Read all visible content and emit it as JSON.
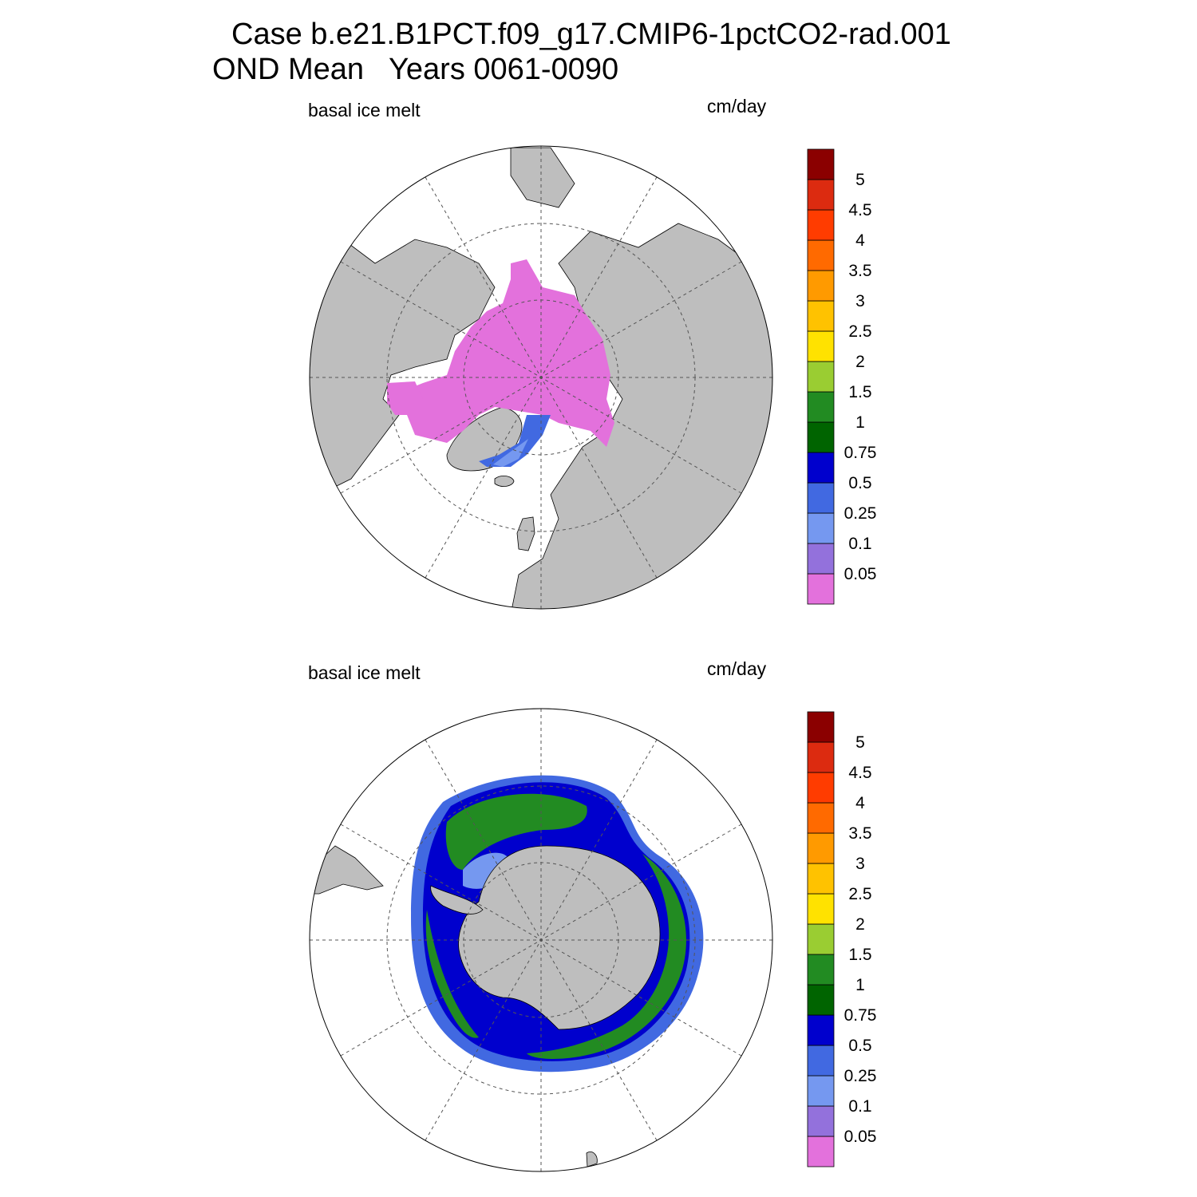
{
  "title": {
    "line1": "Case b.e21.B1PCT.f09_g17.CMIP6-1pctCO2-rad.001",
    "line2": "OND Mean   Years 0061-0090"
  },
  "colorbar": {
    "levels": [
      "0.05",
      "0.1",
      "0.25",
      "0.5",
      "0.75",
      "1",
      "1.5",
      "2",
      "2.5",
      "3",
      "3.5",
      "4",
      "4.5",
      "5"
    ],
    "colors": [
      "#e371dc",
      "#9371dc",
      "#7598f0",
      "#4169e1",
      "#0000cd",
      "#006400",
      "#228b22",
      "#9acd32",
      "#ffe200",
      "#ffc200",
      "#ff9a00",
      "#ff6a00",
      "#ff3c00",
      "#dc2b10",
      "#8b0000"
    ]
  },
  "colors": {
    "land": "#bebebe",
    "ocean": "#ffffff"
  },
  "panels": [
    {
      "hemisphere": "north",
      "left_label": "basal ice melt",
      "right_label": "cm/day"
    },
    {
      "hemisphere": "south",
      "left_label": "basal ice melt",
      "right_label": "cm/day"
    }
  ]
}
